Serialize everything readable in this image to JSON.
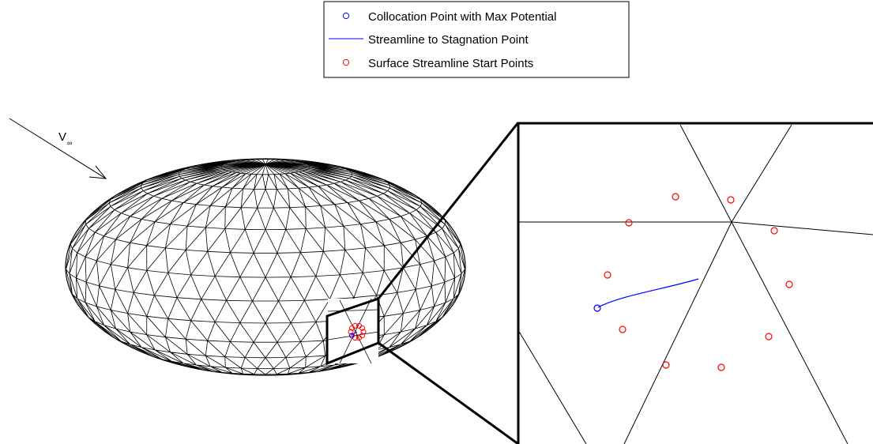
{
  "legend": {
    "entries": [
      {
        "label": "Collocation Point with Max Potential",
        "marker": "circle",
        "color": "#0000ff"
      },
      {
        "label": "Streamline to Stagnation Point",
        "marker": "line",
        "color": "#0000ff"
      },
      {
        "label": "Surface Streamline Start Points",
        "marker": "circle",
        "color": "#ff0000"
      }
    ]
  },
  "freestream": {
    "symbol": "V",
    "subscript": "∞"
  },
  "colors": {
    "mesh": "#000000",
    "max_potential_point": "#0000ff",
    "streamline": "#0000ff",
    "start_points": "#ff0000",
    "background": "#ffffff"
  }
}
